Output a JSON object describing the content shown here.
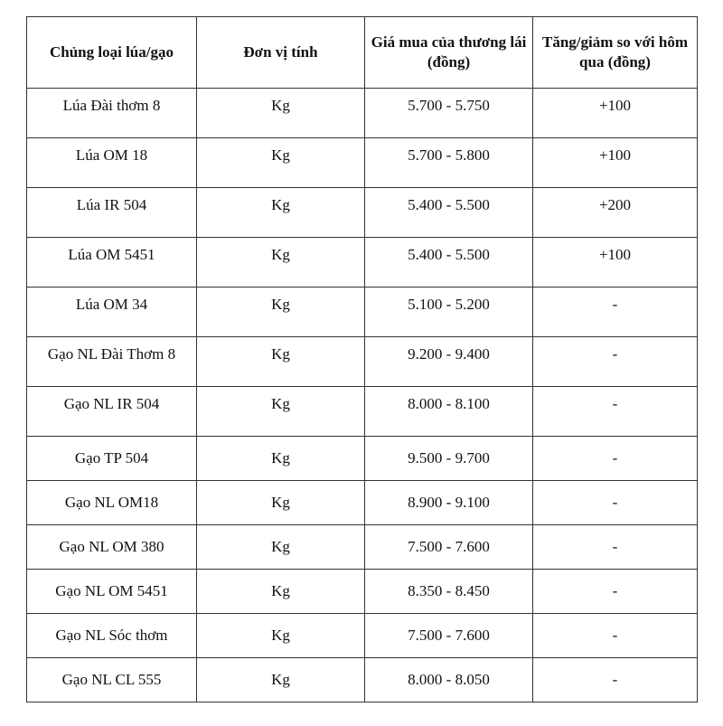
{
  "table": {
    "headers": [
      "Chủng loại lúa/gạo",
      "Đơn vị tính",
      "Giá mua của thương lái (đồng)",
      "Tăng/giảm so với hôm qua (đồng)"
    ],
    "rows": [
      [
        "Lúa Đài thơm 8",
        "Kg",
        "5.700 - 5.750",
        "+100"
      ],
      [
        "Lúa OM 18",
        "Kg",
        "5.700 - 5.800",
        "+100"
      ],
      [
        "Lúa IR 504",
        "Kg",
        "5.400 - 5.500",
        "+200"
      ],
      [
        "Lúa OM 5451",
        "Kg",
        "5.400 - 5.500",
        "+100"
      ],
      [
        "Lúa OM 34",
        "Kg",
        "5.100 - 5.200",
        "-"
      ],
      [
        "Gạo NL Đài Thơm 8",
        "Kg",
        "9.200 - 9.400",
        "-"
      ],
      [
        "Gạo NL IR 504",
        "Kg",
        "8.000 - 8.100",
        "-"
      ],
      [
        "Gạo TP 504",
        "Kg",
        "9.500 - 9.700",
        "-"
      ],
      [
        "Gạo NL OM18",
        "Kg",
        "8.900 - 9.100",
        "-"
      ],
      [
        "Gạo NL OM 380",
        "Kg",
        "7.500 - 7.600",
        "-"
      ],
      [
        "Gạo NL OM 5451",
        "Kg",
        "8.350 - 8.450",
        "-"
      ],
      [
        "Gạo NL Sóc thơm",
        "Kg",
        "7.500 - 7.600",
        "-"
      ],
      [
        "Gạo NL CL 555",
        "Kg",
        "8.000 - 8.050",
        "-"
      ]
    ]
  }
}
